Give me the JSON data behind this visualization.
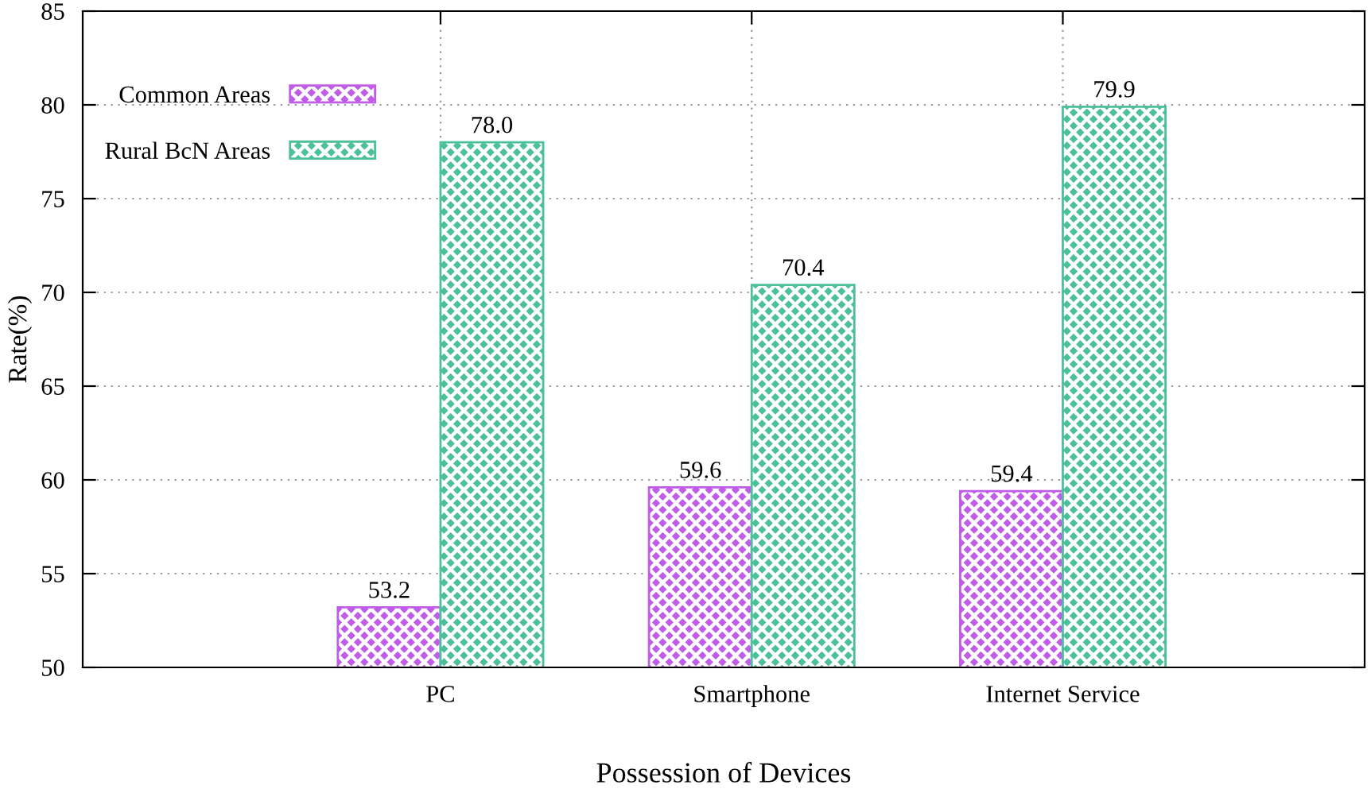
{
  "chart_data": {
    "type": "bar",
    "xlabel": "Possession of Devices",
    "ylabel": "Rate(%)",
    "categories": [
      "PC",
      "Smartphone",
      "Internet Service"
    ],
    "series": [
      {
        "name": "Common Areas",
        "color": "#c05ce8",
        "values": [
          53.2,
          59.6,
          59.4
        ],
        "value_labels": [
          "53.2",
          "59.6",
          "59.4"
        ]
      },
      {
        "name": "Rural BcN Areas",
        "color": "#4cc09a",
        "values": [
          78.0,
          70.4,
          79.9
        ],
        "value_labels": [
          "78.0",
          "70.4",
          "79.9"
        ]
      }
    ],
    "ylim": [
      50,
      85
    ],
    "yticks": [
      50,
      55,
      60,
      65,
      70,
      75,
      80,
      85
    ],
    "grid": true,
    "legend": "top left"
  }
}
